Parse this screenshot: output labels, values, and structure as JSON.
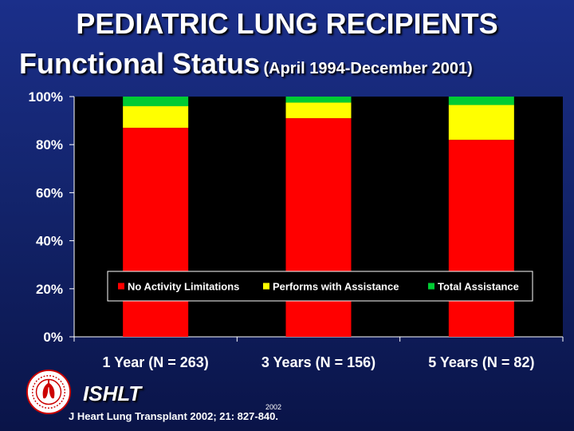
{
  "slide": {
    "title": "PEDIATRIC LUNG RECIPIENTS",
    "subtitle_main": "Functional Status",
    "subtitle_range": "(April 1994-December 2001)",
    "org": "ISHLT",
    "year": "2002",
    "citation": "J Heart Lung Transplant 2002; 21: 827-840."
  },
  "chart_data": {
    "type": "bar",
    "stacked": true,
    "categories": [
      "1 Year (N = 263)",
      "3 Years (N = 156)",
      "5 Years (N = 82)"
    ],
    "series": [
      {
        "name": "No Activity Limitations",
        "color": "#ff0000",
        "values": [
          87,
          91,
          82
        ]
      },
      {
        "name": "Performs with Assistance",
        "color": "#ffff00",
        "values": [
          9,
          6.5,
          14.5
        ]
      },
      {
        "name": "Total Assistance",
        "color": "#00cc33",
        "values": [
          4,
          2.5,
          3.5
        ]
      }
    ],
    "yticks": [
      "0%",
      "20%",
      "40%",
      "60%",
      "80%",
      "100%"
    ],
    "ylim": [
      0,
      100
    ],
    "grid": false,
    "legend_position": "inside-bottom",
    "plot_background": "#000000"
  }
}
